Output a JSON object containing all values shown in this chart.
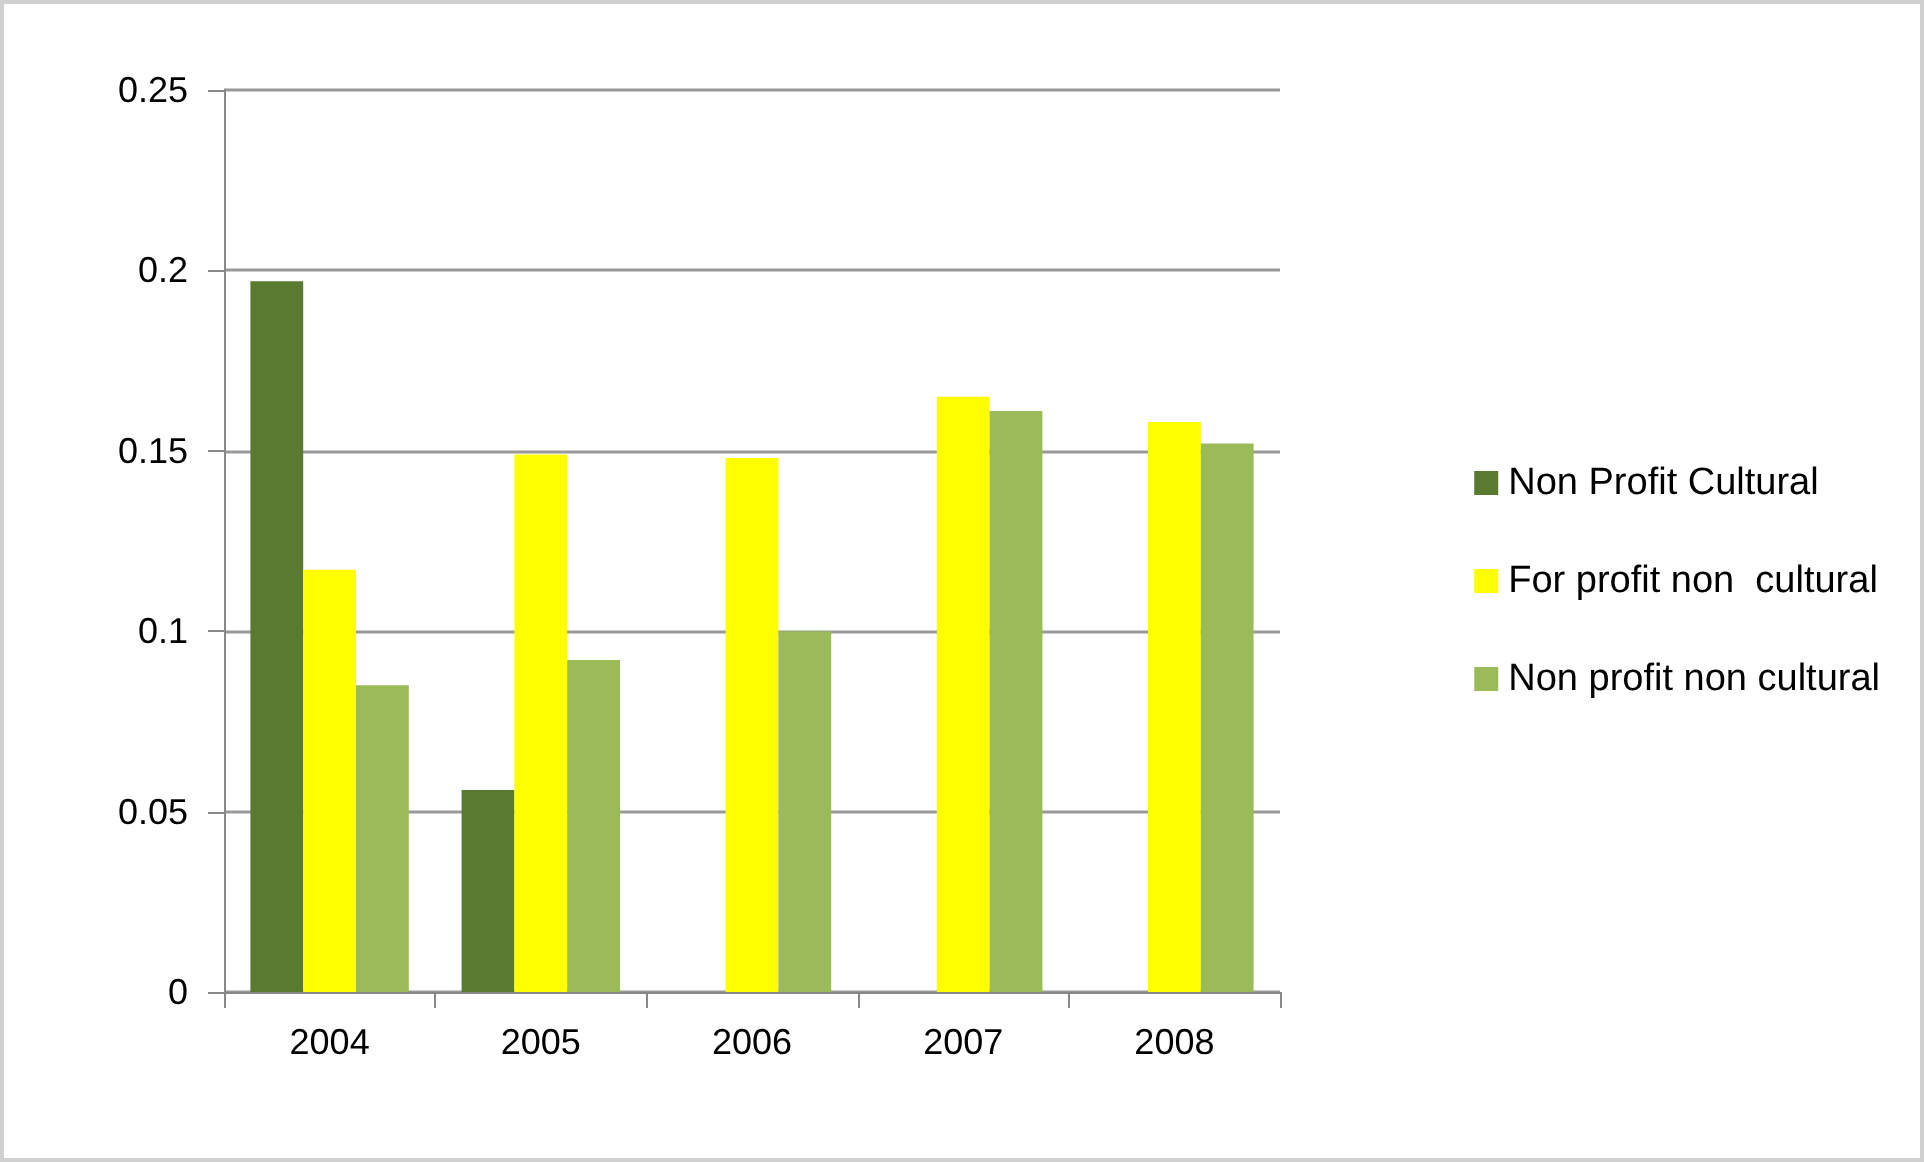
{
  "chart_data": {
    "type": "bar",
    "categories": [
      "2004",
      "2005",
      "2006",
      "2007",
      "2008"
    ],
    "series": [
      {
        "name": "Non Profit Cultural",
        "color": "#5a7a30",
        "values": [
          0.197,
          0.056,
          null,
          null,
          null
        ]
      },
      {
        "name": "For profit non  cultural",
        "color": "#ffff00",
        "values": [
          0.117,
          0.149,
          0.148,
          0.165,
          0.158
        ]
      },
      {
        "name": "Non profit non cultural",
        "color": "#9bbb59",
        "values": [
          0.085,
          0.092,
          0.1,
          0.161,
          0.152
        ]
      }
    ],
    "ylim": [
      0,
      0.25
    ],
    "yticks": [
      0,
      0.05,
      0.1,
      0.15,
      0.2,
      0.25
    ],
    "grid": "y",
    "legend": "right"
  }
}
